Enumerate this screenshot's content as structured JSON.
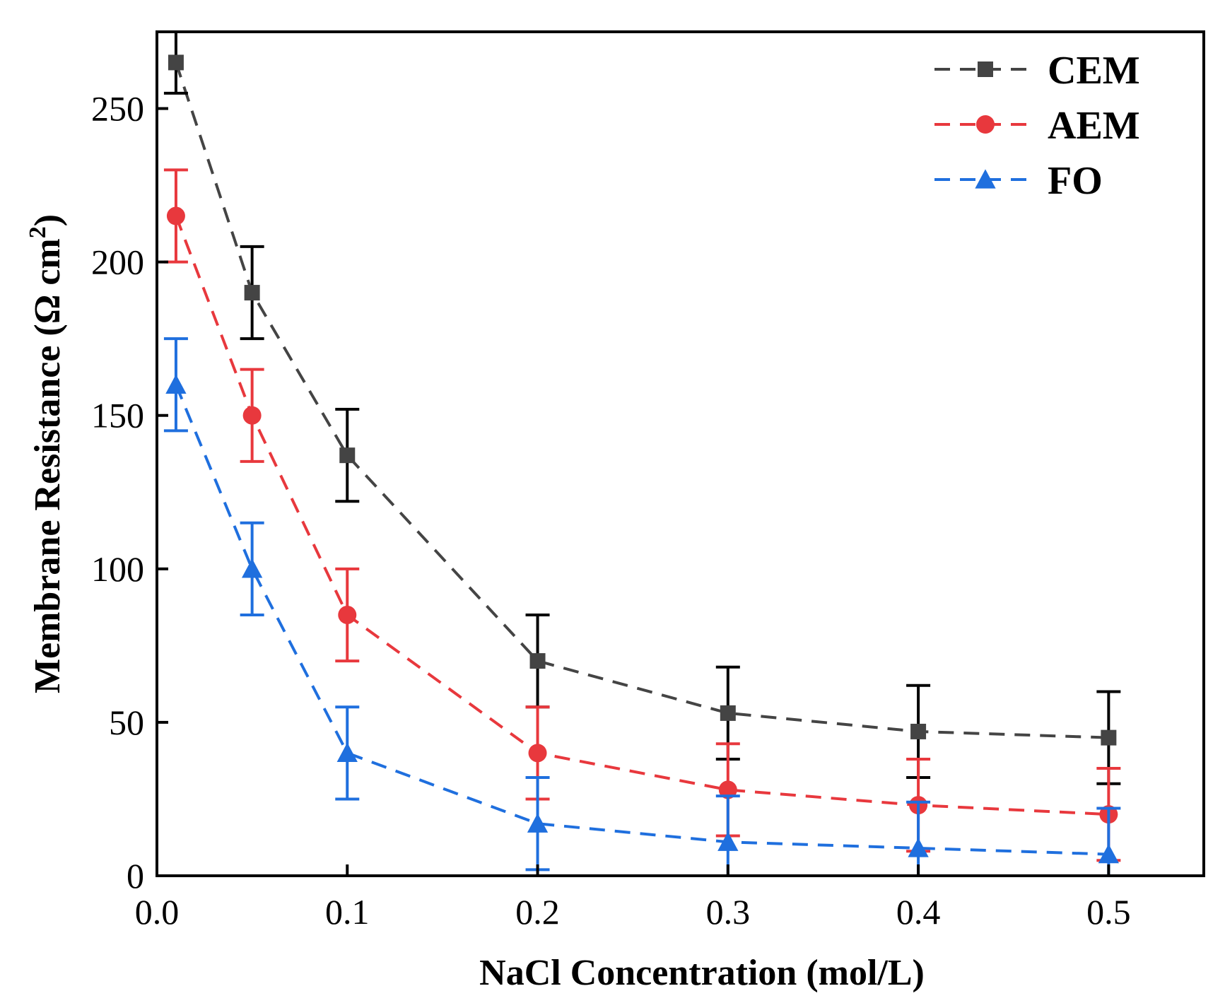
{
  "chart_data": {
    "type": "line",
    "title": "",
    "xlabel": "NaCl Concentration (mol/L)",
    "ylabel": {
      "main": "Membrane Resistance (Ω cm",
      "superscript": "2",
      "close": ")"
    },
    "xlim": [
      0.0,
      0.55
    ],
    "ylim": [
      0,
      275
    ],
    "xticks": [
      0.0,
      0.1,
      0.2,
      0.3,
      0.4,
      0.5
    ],
    "xtick_labels": [
      "0.0",
      "0.1",
      "0.2",
      "0.3",
      "0.4",
      "0.5"
    ],
    "yticks": [
      0,
      50,
      100,
      150,
      200,
      250
    ],
    "ytick_labels": [
      "0",
      "50",
      "100",
      "150",
      "200",
      "250"
    ],
    "grid": false,
    "legend_position": "top-right",
    "x": [
      0.01,
      0.05,
      0.1,
      0.2,
      0.3,
      0.4,
      0.5
    ],
    "series": [
      {
        "name": "CEM",
        "marker": "square",
        "color": "#444444",
        "error_color": "#000000",
        "values": [
          265,
          190,
          137,
          70,
          53,
          47,
          45
        ],
        "errors": [
          10,
          15,
          15,
          15,
          15,
          15,
          15
        ]
      },
      {
        "name": "AEM",
        "marker": "circle",
        "color": "#e8383d",
        "error_color": "#e8383d",
        "values": [
          215,
          150,
          85,
          40,
          28,
          23,
          20
        ],
        "errors": [
          15,
          15,
          15,
          15,
          15,
          15,
          15
        ]
      },
      {
        "name": "FO",
        "marker": "triangle",
        "color": "#1f6fde",
        "error_color": "#1f6fde",
        "values": [
          160,
          100,
          40,
          17,
          11,
          9,
          7
        ],
        "errors": [
          15,
          15,
          15,
          15,
          15,
          15,
          15
        ]
      }
    ]
  }
}
